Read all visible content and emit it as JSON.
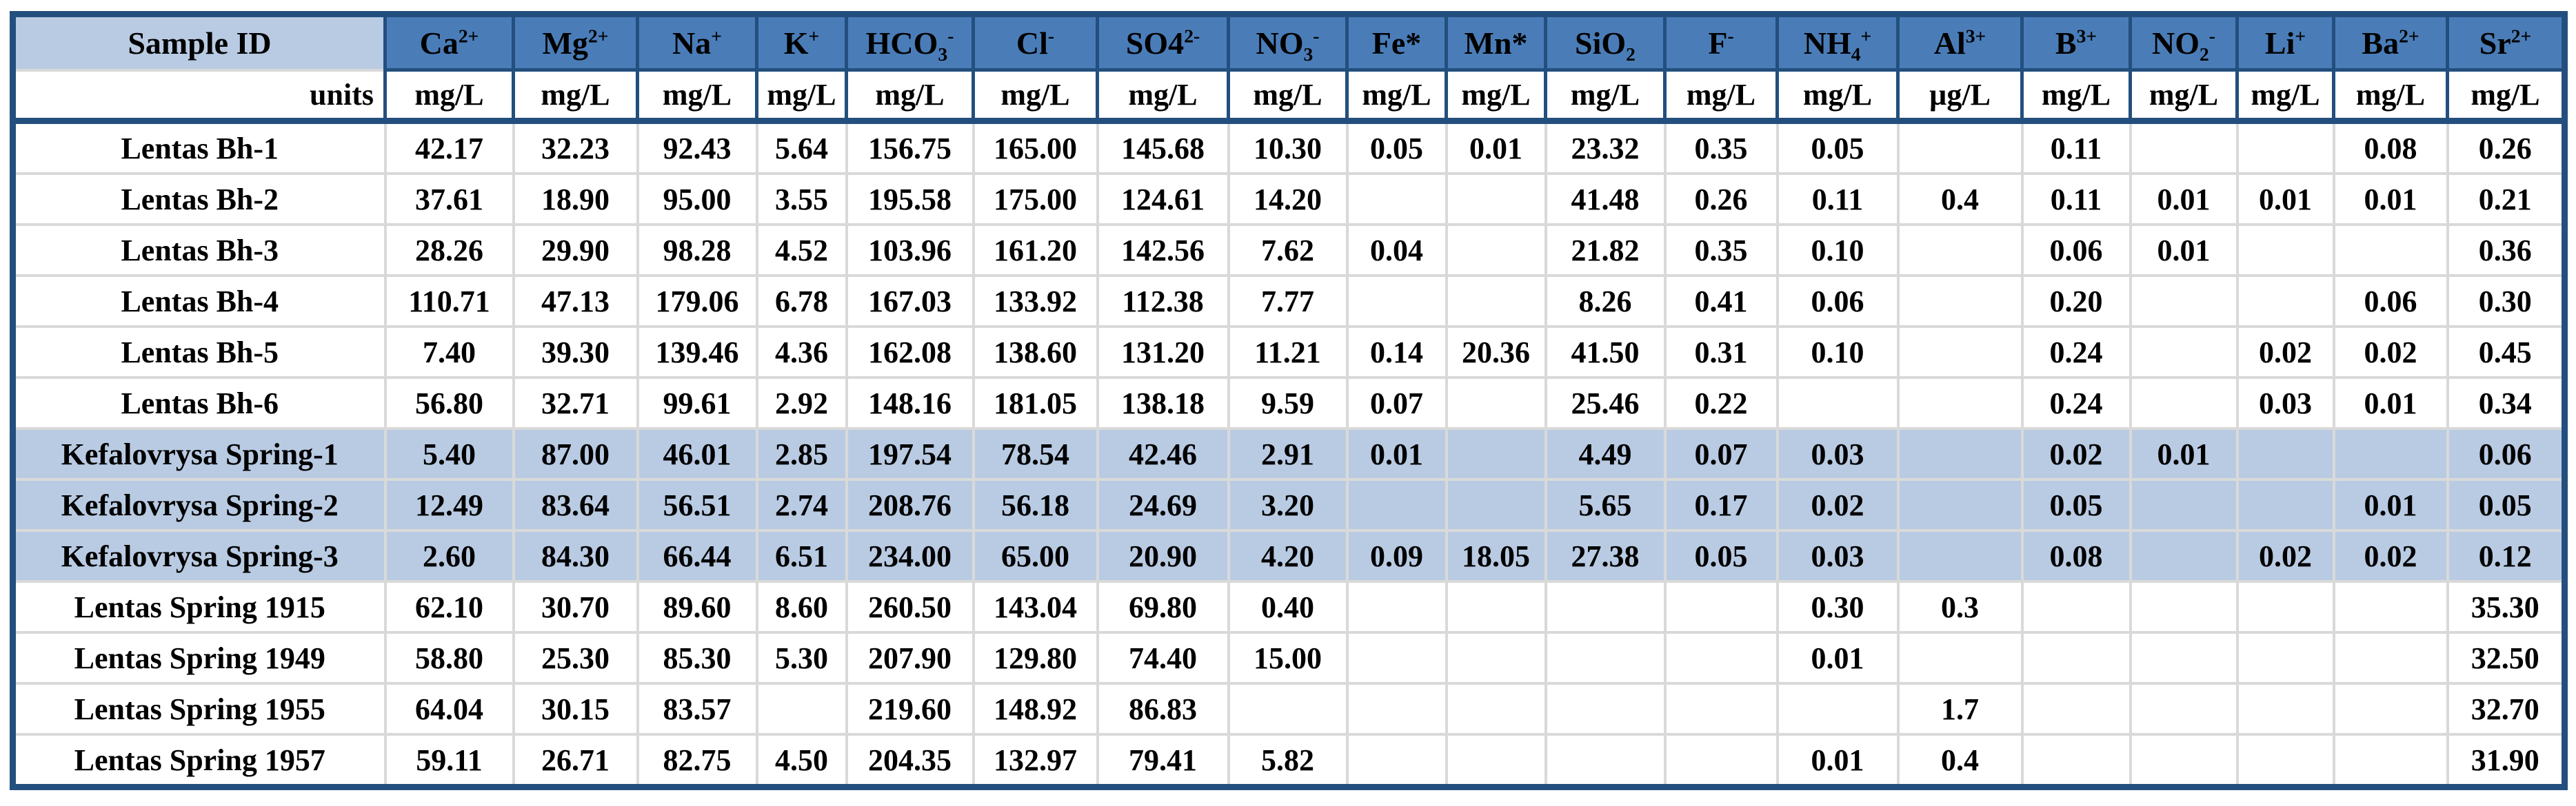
{
  "colors": {
    "border_navy": "#234F7E",
    "header_blue": "#4A7DB8",
    "light_blue": "#B9CBE3",
    "grid_gray": "#D9D9D9",
    "text": "#000000",
    "cell_white": "#FFFFFF"
  },
  "table": {
    "columns": [
      {
        "id": "sample-id",
        "label": "Sample ID",
        "unit": "units"
      },
      {
        "id": "ca",
        "label": "Ca^{2+}",
        "unit": "mg/L"
      },
      {
        "id": "mg",
        "label": "Mg^{2+}",
        "unit": "mg/L"
      },
      {
        "id": "na",
        "label": "Na^{+}",
        "unit": "mg/L"
      },
      {
        "id": "k",
        "label": "K^{+}",
        "unit": "mg/L"
      },
      {
        "id": "hco3",
        "label": "HCO_{3}^{-}",
        "unit": "mg/L"
      },
      {
        "id": "cl",
        "label": "Cl^{-}",
        "unit": "mg/L"
      },
      {
        "id": "so4",
        "label": "SO4^{2-}",
        "unit": "mg/L"
      },
      {
        "id": "no3",
        "label": "NO_{3}^{-}",
        "unit": "mg/L"
      },
      {
        "id": "fe",
        "label": "Fe*",
        "unit": "mg/L"
      },
      {
        "id": "mn",
        "label": "Mn*",
        "unit": "mg/L"
      },
      {
        "id": "sio2",
        "label": "SiO_{2}",
        "unit": "mg/L"
      },
      {
        "id": "f",
        "label": "F^{-}",
        "unit": "mg/L"
      },
      {
        "id": "nh4",
        "label": "NH_{4}^{+}",
        "unit": "mg/L"
      },
      {
        "id": "al",
        "label": "Al^{3+}",
        "unit": "µg/L"
      },
      {
        "id": "b",
        "label": "B^{3+}",
        "unit": "mg/L"
      },
      {
        "id": "no2",
        "label": "NO_{2}^{-}",
        "unit": "mg/L"
      },
      {
        "id": "li",
        "label": "Li^{+}",
        "unit": "mg/L"
      },
      {
        "id": "ba",
        "label": "Ba^{2+}",
        "unit": "mg/L"
      },
      {
        "id": "sr",
        "label": "Sr^{2+}",
        "unit": "mg/L"
      }
    ],
    "rows": [
      {
        "id": "Lentas Bh-1",
        "highlight": false,
        "values": [
          "42.17",
          "32.23",
          "92.43",
          "5.64",
          "156.75",
          "165.00",
          "145.68",
          "10.30",
          "0.05",
          "0.01",
          "23.32",
          "0.35",
          "0.05",
          "",
          "0.11",
          "",
          "",
          "0.08",
          "0.26"
        ]
      },
      {
        "id": "Lentas Bh-2",
        "highlight": false,
        "values": [
          "37.61",
          "18.90",
          "95.00",
          "3.55",
          "195.58",
          "175.00",
          "124.61",
          "14.20",
          "",
          "",
          "41.48",
          "0.26",
          "0.11",
          "0.4",
          "0.11",
          "0.01",
          "0.01",
          "0.01",
          "0.21"
        ]
      },
      {
        "id": "Lentas Bh-3",
        "highlight": false,
        "values": [
          "28.26",
          "29.90",
          "98.28",
          "4.52",
          "103.96",
          "161.20",
          "142.56",
          "7.62",
          "0.04",
          "",
          "21.82",
          "0.35",
          "0.10",
          "",
          "0.06",
          "0.01",
          "",
          "",
          "0.36"
        ]
      },
      {
        "id": "Lentas Bh-4",
        "highlight": false,
        "values": [
          "110.71",
          "47.13",
          "179.06",
          "6.78",
          "167.03",
          "133.92",
          "112.38",
          "7.77",
          "",
          "",
          "8.26",
          "0.41",
          "0.06",
          "",
          "0.20",
          "",
          "",
          "0.06",
          "0.30"
        ]
      },
      {
        "id": "Lentas Bh-5",
        "highlight": false,
        "values": [
          "7.40",
          "39.30",
          "139.46",
          "4.36",
          "162.08",
          "138.60",
          "131.20",
          "11.21",
          "0.14",
          "20.36",
          "41.50",
          "0.31",
          "0.10",
          "",
          "0.24",
          "",
          "0.02",
          "0.02",
          "0.45"
        ]
      },
      {
        "id": "Lentas Bh-6",
        "highlight": false,
        "values": [
          "56.80",
          "32.71",
          "99.61",
          "2.92",
          "148.16",
          "181.05",
          "138.18",
          "9.59",
          "0.07",
          "",
          "25.46",
          "0.22",
          "",
          "",
          "0.24",
          "",
          "0.03",
          "0.01",
          "0.34"
        ]
      },
      {
        "id": "Kefalovrysa Spring-1",
        "highlight": true,
        "values": [
          "5.40",
          "87.00",
          "46.01",
          "2.85",
          "197.54",
          "78.54",
          "42.46",
          "2.91",
          "0.01",
          "",
          "4.49",
          "0.07",
          "0.03",
          "",
          "0.02",
          "0.01",
          "",
          "",
          "0.06"
        ]
      },
      {
        "id": "Kefalovrysa Spring-2",
        "highlight": true,
        "values": [
          "12.49",
          "83.64",
          "56.51",
          "2.74",
          "208.76",
          "56.18",
          "24.69",
          "3.20",
          "",
          "",
          "5.65",
          "0.17",
          "0.02",
          "",
          "0.05",
          "",
          "",
          "0.01",
          "0.05"
        ]
      },
      {
        "id": "Kefalovrysa Spring-3",
        "highlight": true,
        "values": [
          "2.60",
          "84.30",
          "66.44",
          "6.51",
          "234.00",
          "65.00",
          "20.90",
          "4.20",
          "0.09",
          "18.05",
          "27.38",
          "0.05",
          "0.03",
          "",
          "0.08",
          "",
          "0.02",
          "0.02",
          "0.12"
        ]
      },
      {
        "id": "Lentas Spring 1915",
        "highlight": false,
        "values": [
          "62.10",
          "30.70",
          "89.60",
          "8.60",
          "260.50",
          "143.04",
          "69.80",
          "0.40",
          "",
          "",
          "",
          "",
          "0.30",
          "0.3",
          "",
          "",
          "",
          "",
          "35.30"
        ]
      },
      {
        "id": "Lentas Spring 1949",
        "highlight": false,
        "values": [
          "58.80",
          "25.30",
          "85.30",
          "5.30",
          "207.90",
          "129.80",
          "74.40",
          "15.00",
          "",
          "",
          "",
          "",
          "0.01",
          "",
          "",
          "",
          "",
          "",
          "32.50"
        ]
      },
      {
        "id": "Lentas Spring 1955",
        "highlight": false,
        "values": [
          "64.04",
          "30.15",
          "83.57",
          "",
          "219.60",
          "148.92",
          "86.83",
          "",
          "",
          "",
          "",
          "",
          "",
          "1.7",
          "",
          "",
          "",
          "",
          "32.70"
        ]
      },
      {
        "id": "Lentas Spring 1957",
        "highlight": false,
        "values": [
          "59.11",
          "26.71",
          "82.75",
          "4.50",
          "204.35",
          "132.97",
          "79.41",
          "5.82",
          "",
          "",
          "",
          "",
          "0.01",
          "0.4",
          "",
          "",
          "",
          "",
          "31.90"
        ]
      }
    ]
  }
}
